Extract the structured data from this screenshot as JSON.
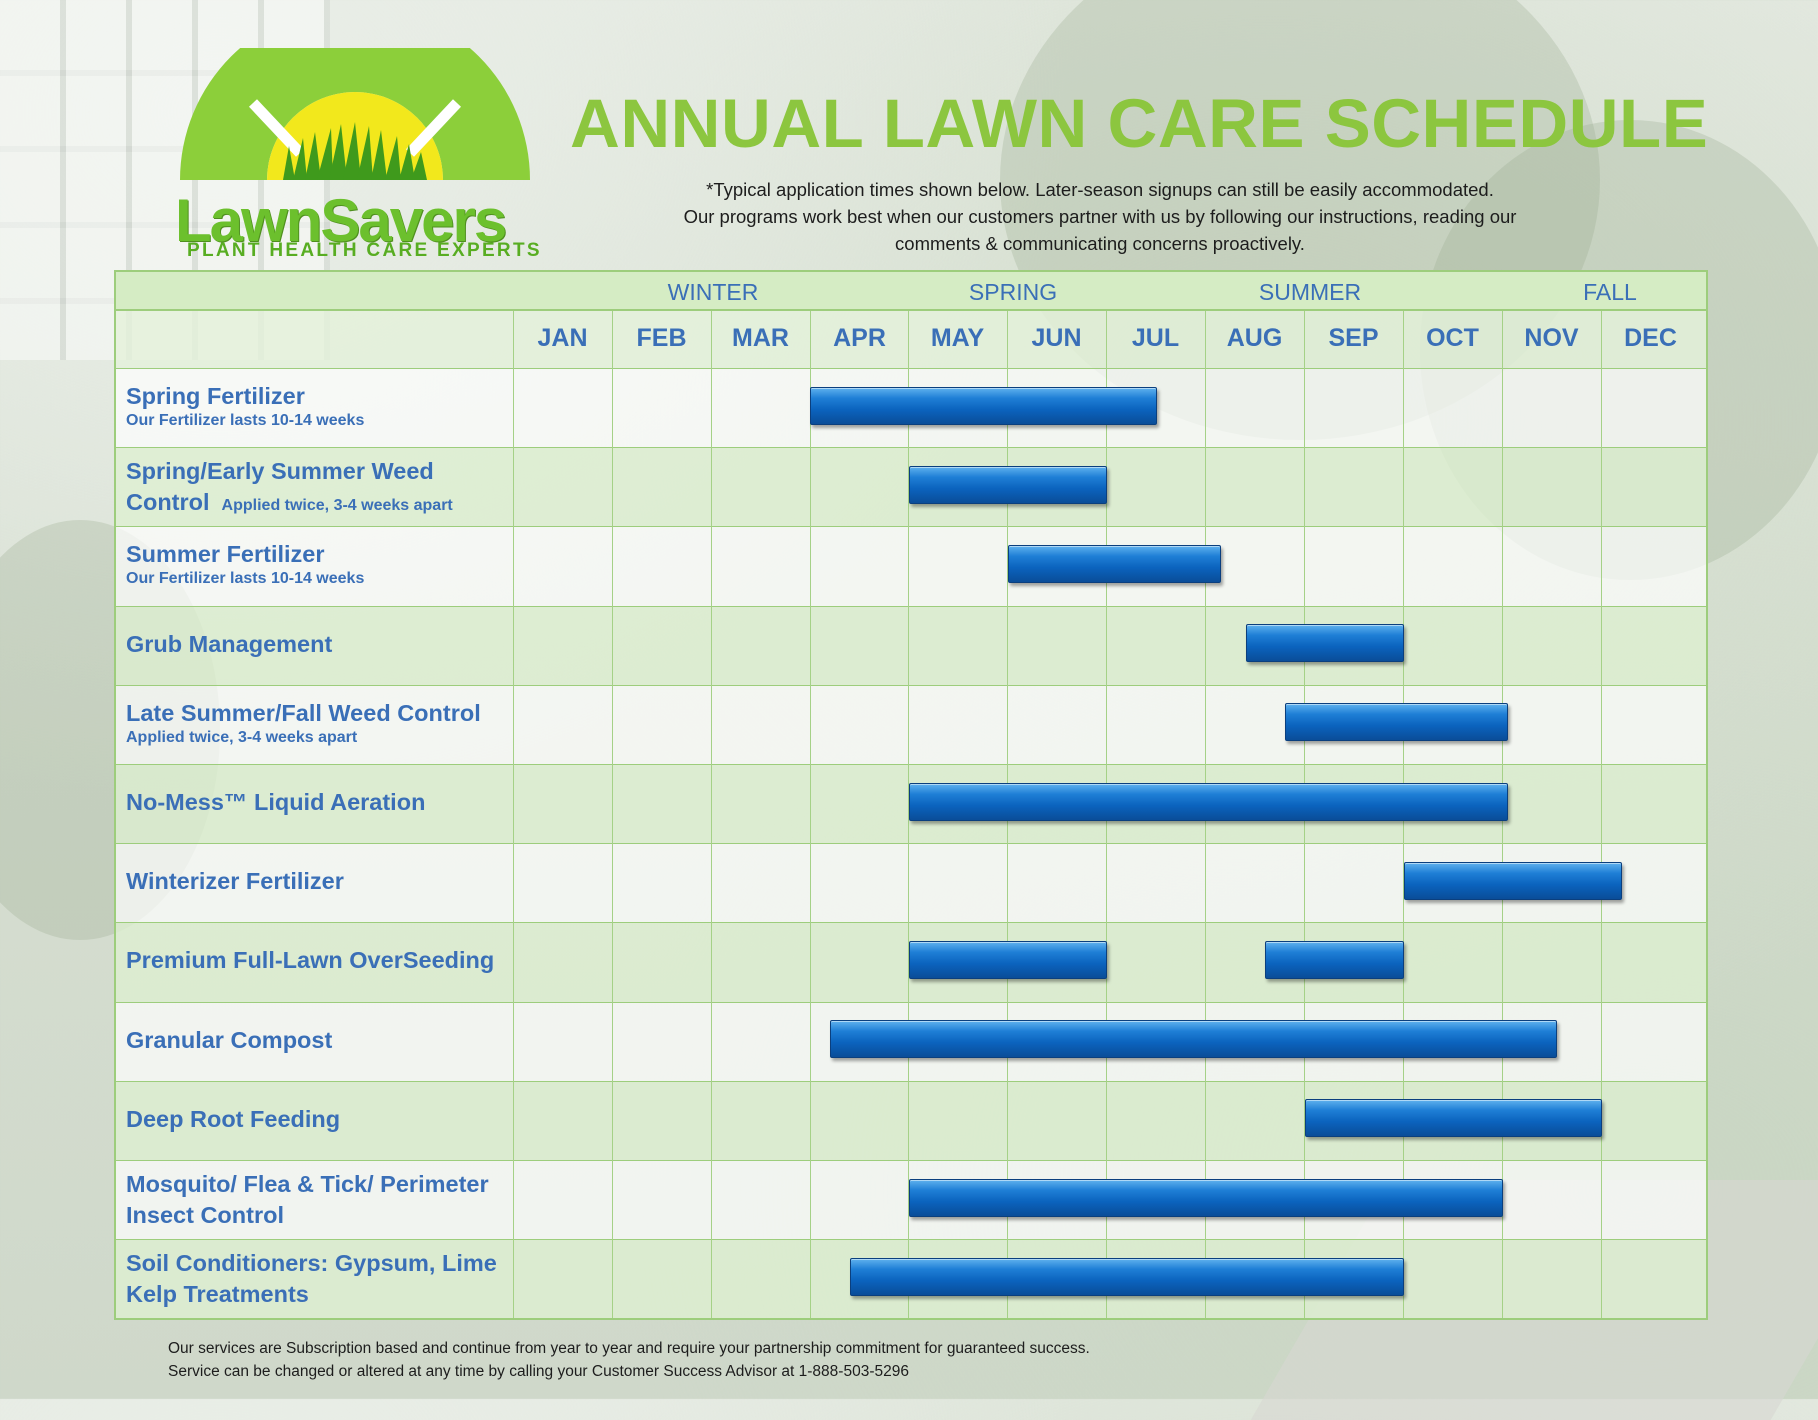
{
  "brand": {
    "name": "LawnSavers",
    "tagline": "PLANT HEALTH CARE EXPERTS",
    "colors": {
      "green": "#8cc63f",
      "logo_green": "#6cc02d",
      "sun": "#f2e81c",
      "blue_text": "#3a6fb7",
      "bar_blue": "#0b63be",
      "grid_green": "#9dcd7c"
    }
  },
  "header": {
    "title": "ANNUAL LAWN CARE SCHEDULE",
    "note_line1": "*Typical application times shown below.  Later-season signups can still be easily accommodated.",
    "note_line2": "Our programs work best when our customers partner with us by following our instructions, reading our",
    "note_line3": "comments & communicating concerns proactively."
  },
  "seasons": [
    "WINTER",
    "SPRING",
    "SUMMER",
    "FALL"
  ],
  "months": [
    "JAN",
    "FEB",
    "MAR",
    "APR",
    "MAY",
    "JUN",
    "JUL",
    "AUG",
    "SEP",
    "OCT",
    "NOV",
    "DEC"
  ],
  "chart_data": {
    "type": "table",
    "title": "ANNUAL LAWN CARE SCHEDULE",
    "x_unit": "month index (0 = start of JAN, 12 = end of DEC)",
    "tasks": [
      {
        "name": "Spring Fertilizer",
        "note": "Our Fertilizer lasts 10-14 weeks",
        "ranges": [
          [
            3.0,
            6.5
          ]
        ]
      },
      {
        "name_line1": "Spring/Early Summer Weed",
        "name_line2": "Control",
        "note": "Applied twice, 3-4 weeks apart",
        "ranges": [
          [
            4.0,
            6.0
          ]
        ]
      },
      {
        "name": "Summer Fertilizer",
        "note": "Our Fertilizer lasts 10-14 weeks",
        "ranges": [
          [
            5.0,
            7.15
          ]
        ]
      },
      {
        "name": "Grub Management",
        "ranges": [
          [
            7.4,
            9.0
          ]
        ]
      },
      {
        "name": "Late Summer/Fall Weed Control",
        "note": "Applied twice, 3-4 weeks apart",
        "ranges": [
          [
            7.8,
            10.05
          ]
        ]
      },
      {
        "name": "No-Mess™ Liquid Aeration",
        "ranges": [
          [
            4.0,
            10.05
          ]
        ]
      },
      {
        "name": "Winterizer Fertilizer",
        "ranges": [
          [
            9.0,
            11.2
          ]
        ]
      },
      {
        "name": "Premium Full-Lawn OverSeeding",
        "ranges": [
          [
            4.0,
            6.0
          ],
          [
            7.6,
            9.0
          ]
        ]
      },
      {
        "name": "Granular Compost",
        "ranges": [
          [
            3.2,
            10.55
          ]
        ]
      },
      {
        "name": "Deep Root Feeding",
        "ranges": [
          [
            8.0,
            11.0
          ]
        ]
      },
      {
        "name_line1": "Mosquito/ Flea & Tick/ Perimeter",
        "name_line2": "Insect Control",
        "ranges": [
          [
            4.0,
            10.0
          ]
        ]
      },
      {
        "name_line1": "Soil Conditioners: Gypsum, Lime",
        "name_line2": "Kelp Treatments",
        "ranges": [
          [
            3.4,
            9.0
          ]
        ]
      }
    ]
  },
  "footer": {
    "line1": "Our services are Subscription based and continue from year to year and require your partnership commitment for guaranteed success.",
    "line2": "Service can be changed or altered at any time by calling your Customer Success Advisor at 1-888-503-5296"
  }
}
